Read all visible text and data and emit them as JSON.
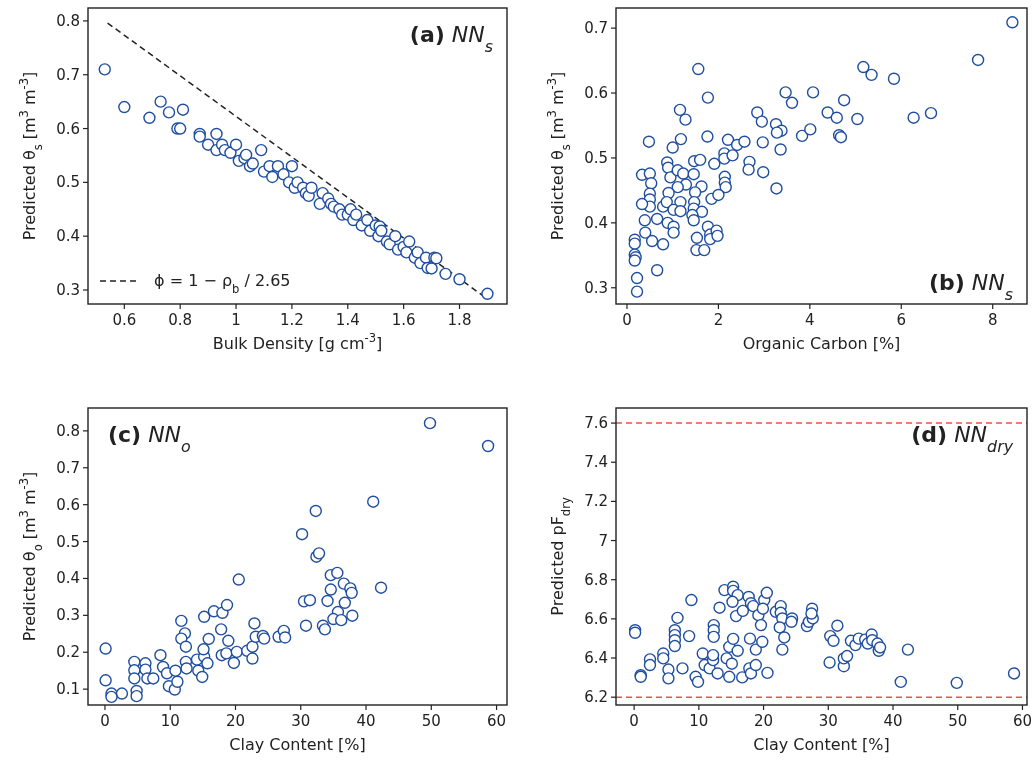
{
  "chart_data": [
    {
      "type": "scatter",
      "xlabel": "Bulk Density [g cm$^{-3}$]",
      "ylabel": "Predicted θ$_{s}$ [m$^{3}$ m$^{-3}$]",
      "annotations": [
        "(a) NN$_{s}$"
      ],
      "xlim": [
        0.47,
        1.97
      ],
      "ylim": [
        0.274,
        0.824
      ],
      "xticks": [
        0.6,
        0.8,
        1.0,
        1.2,
        1.4,
        1.6,
        1.8
      ],
      "yticks": [
        0.3,
        0.4,
        0.5,
        0.6,
        0.7,
        0.8
      ],
      "marker": "circle",
      "legend": "bottom left",
      "series": [
        {
          "type": "line",
          "name": "ϕ = 1 − ρ$_{b}$ / 2.65",
          "color": "#222222",
          "line_style": "dashed",
          "marker": "none",
          "x": [
            0.54,
            1.89
          ],
          "values": [
            0.796,
            0.287
          ]
        },
        {
          "type": "scatter",
          "color": "#1f4e9f",
          "x": [
            0.53,
            0.6,
            0.69,
            0.73,
            0.76,
            0.79,
            0.8,
            0.81,
            0.87,
            0.87,
            0.9,
            0.93,
            0.93,
            0.95,
            0.96,
            0.98,
            1.0,
            1.01,
            1.03,
            1.036,
            1.05,
            1.06,
            1.09,
            1.1,
            1.12,
            1.13,
            1.15,
            1.17,
            1.19,
            1.2,
            1.21,
            1.22,
            1.24,
            1.25,
            1.26,
            1.27,
            1.3,
            1.31,
            1.33,
            1.34,
            1.35,
            1.37,
            1.38,
            1.4,
            1.41,
            1.42,
            1.43,
            1.45,
            1.47,
            1.48,
            1.5,
            1.51,
            1.514,
            1.52,
            1.54,
            1.55,
            1.57,
            1.58,
            1.6,
            1.61,
            1.62,
            1.64,
            1.65,
            1.66,
            1.68,
            1.686,
            1.7,
            1.71,
            1.717,
            1.75,
            1.8,
            1.9
          ],
          "values": [
            0.71,
            0.64,
            0.62,
            0.65,
            0.63,
            0.6,
            0.6,
            0.635,
            0.59,
            0.585,
            0.57,
            0.59,
            0.56,
            0.57,
            0.56,
            0.555,
            0.57,
            0.54,
            0.545,
            0.551,
            0.53,
            0.535,
            0.56,
            0.52,
            0.53,
            0.51,
            0.53,
            0.515,
            0.5,
            0.53,
            0.49,
            0.5,
            0.49,
            0.48,
            0.475,
            0.49,
            0.46,
            0.48,
            0.47,
            0.46,
            0.455,
            0.45,
            0.44,
            0.44,
            0.45,
            0.43,
            0.44,
            0.42,
            0.43,
            0.41,
            0.42,
            0.4,
            0.418,
            0.41,
            0.39,
            0.385,
            0.4,
            0.375,
            0.38,
            0.37,
            0.39,
            0.36,
            0.37,
            0.35,
            0.36,
            0.341,
            0.34,
            0.36,
            0.359,
            0.33,
            0.32,
            0.293
          ]
        }
      ]
    },
    {
      "type": "scatter",
      "xlabel": "Organic Carbon [%]",
      "ylabel": "Predicted θ$_{s}$ [m$^{3}$ m$^{-3}$]",
      "annotations": [
        "(b) NN$_{s}$"
      ],
      "xlim": [
        -0.24,
        8.75
      ],
      "ylim": [
        0.275,
        0.731
      ],
      "xticks": [
        0,
        2,
        4,
        6,
        8
      ],
      "yticks": [
        0.3,
        0.4,
        0.5,
        0.6,
        0.7
      ],
      "marker": "circle",
      "series": [
        {
          "type": "scatter",
          "color": "#1f4e9f",
          "x": [
            8.43,
            7.68,
            5.17,
            5.35,
            5.84,
            1.56,
            1.77,
            3.47,
            4.07,
            3.61,
            4.75,
            4.39,
            4.59,
            5.04,
            6.27,
            6.65,
            1.16,
            1.28,
            2.85,
            2.95,
            3.26,
            3.38,
            3.28,
            3.83,
            4.01,
            4.64,
            4.68,
            0.48,
            1.18,
            1.76,
            2.21,
            1.0,
            2.41,
            2.57,
            2.97,
            3.36,
            2.13,
            2.13,
            2.31,
            1.47,
            1.6,
            1.91,
            2.68,
            2.66,
            2.98,
            3.27,
            0.88,
            0.9,
            0.33,
            0.5,
            0.53,
            0.95,
            1.11,
            1.23,
            1.46,
            1.29,
            1.11,
            1.63,
            1.49,
            2.14,
            2.14,
            2.16,
            0.5,
            0.5,
            0.5,
            0.91,
            0.33,
            0.79,
            0.87,
            1.17,
            1.47,
            1.46,
            1.02,
            1.17,
            1.64,
            1.85,
            2.0,
            1.43,
            1.46,
            0.39,
            0.66,
            0.89,
            1.02,
            1.02,
            0.4,
            0.55,
            0.79,
            1.77,
            1.82,
            1.82,
            1.96,
            1.98,
            1.53,
            1.52,
            1.69,
            0.17,
            0.17,
            0.17,
            0.19,
            0.17,
            0.66,
            0.22,
            0.22
          ],
          "values": [
            0.709,
            0.651,
            0.64,
            0.628,
            0.622,
            0.637,
            0.593,
            0.601,
            0.601,
            0.585,
            0.589,
            0.57,
            0.562,
            0.56,
            0.562,
            0.569,
            0.574,
            0.559,
            0.57,
            0.556,
            0.552,
            0.542,
            0.539,
            0.534,
            0.544,
            0.535,
            0.532,
            0.525,
            0.529,
            0.533,
            0.528,
            0.516,
            0.52,
            0.525,
            0.524,
            0.513,
            0.507,
            0.499,
            0.504,
            0.495,
            0.497,
            0.491,
            0.494,
            0.482,
            0.478,
            0.453,
            0.493,
            0.485,
            0.474,
            0.476,
            0.461,
            0.47,
            0.481,
            0.476,
            0.475,
            0.459,
            0.455,
            0.456,
            0.447,
            0.471,
            0.462,
            0.455,
            0.445,
            0.436,
            0.425,
            0.446,
            0.429,
            0.425,
            0.432,
            0.432,
            0.432,
            0.422,
            0.42,
            0.418,
            0.417,
            0.437,
            0.443,
            0.412,
            0.404,
            0.404,
            0.406,
            0.4,
            0.394,
            0.385,
            0.385,
            0.372,
            0.367,
            0.394,
            0.382,
            0.375,
            0.388,
            0.38,
            0.377,
            0.358,
            0.358,
            0.374,
            0.368,
            0.351,
            0.347,
            0.342,
            0.327,
            0.315,
            0.294
          ]
        }
      ]
    },
    {
      "type": "scatter",
      "xlabel": "Clay Content [%]",
      "ylabel": "Predicted θ$_{o}$ [m$^{3}$ m$^{-3}$]",
      "annotations": [
        "(c) NN$_{o}$"
      ],
      "xlim": [
        -2.6,
        61.6
      ],
      "ylim": [
        0.057,
        0.862
      ],
      "xticks": [
        0,
        10,
        20,
        30,
        40,
        50,
        60
      ],
      "yticks": [
        0.1,
        0.2,
        0.3,
        0.4,
        0.5,
        0.6,
        0.7,
        0.8
      ],
      "marker": "circle",
      "series": [
        {
          "type": "scatter",
          "color": "#1f4e9f",
          "x": [
            0.1,
            0.1,
            1.0,
            2.6,
            1.0,
            4.85,
            4.85,
            4.5,
            4.5,
            4.5,
            6.2,
            6.2,
            6.5,
            7.4,
            8.5,
            8.9,
            9.5,
            9.8,
            10.7,
            11.1,
            10.8,
            11.7,
            12.25,
            11.7,
            12.4,
            12.4,
            12.5,
            14.1,
            14.3,
            14.9,
            15.2,
            15.7,
            15.2,
            16.7,
            18.0,
            18.7,
            15.9,
            15.1,
            17.8,
            18.9,
            20.5,
            17.9,
            18.6,
            20.2,
            19.75,
            21.8,
            22.6,
            22.6,
            22.9,
            23.1,
            24.2,
            24.4,
            26.6,
            27.4,
            27.6,
            30.2,
            32.3,
            32.4,
            32.8,
            30.5,
            31.4,
            30.8,
            33.4,
            33.7,
            34.1,
            34.6,
            35.6,
            34.6,
            36.6,
            37.6,
            37.8,
            36.75,
            35.7,
            35.0,
            36.2,
            37.9,
            41.1,
            42.3,
            49.8,
            58.7
          ],
          "values": [
            0.21,
            0.124,
            0.088,
            0.088,
            0.079,
            0.095,
            0.081,
            0.174,
            0.151,
            0.129,
            0.17,
            0.153,
            0.129,
            0.129,
            0.192,
            0.16,
            0.143,
            0.108,
            0.099,
            0.12,
            0.15,
            0.285,
            0.251,
            0.237,
            0.215,
            0.174,
            0.156,
            0.18,
            0.15,
            0.133,
            0.188,
            0.17,
            0.296,
            0.311,
            0.307,
            0.328,
            0.236,
            0.208,
            0.262,
            0.231,
            0.397,
            0.192,
            0.197,
            0.201,
            0.171,
            0.204,
            0.215,
            0.183,
            0.278,
            0.242,
            0.244,
            0.237,
            0.242,
            0.258,
            0.24,
            0.52,
            0.583,
            0.459,
            0.468,
            0.338,
            0.341,
            0.272,
            0.272,
            0.262,
            0.339,
            0.409,
            0.415,
            0.37,
            0.386,
            0.373,
            0.361,
            0.334,
            0.309,
            0.29,
            0.287,
            0.299,
            0.608,
            0.375,
            0.821,
            0.759
          ]
        }
      ]
    },
    {
      "type": "scatter",
      "xlabel": "Clay Content [%]",
      "ylabel": "Predicted pF$_{dry}$",
      "annotations": [
        "(d) NN$_{dry}$"
      ],
      "xlim": [
        -2.8,
        60.7
      ],
      "ylim": [
        6.16,
        7.677
      ],
      "xticks": [
        0,
        10,
        20,
        30,
        40,
        50,
        60
      ],
      "yticks": [
        6.2,
        6.4,
        6.6,
        6.8,
        7.0,
        7.2,
        7.4,
        7.6
      ],
      "marker": "circle",
      "ref_lines": [
        {
          "axis": "y",
          "value": 7.6,
          "color": "#e8553b",
          "line_style": "dashed"
        },
        {
          "axis": "y",
          "value": 6.2,
          "color": "#e8553b",
          "line_style": "dashed"
        }
      ],
      "series": [
        {
          "type": "scatter",
          "color": "#1f4e9f",
          "x": [
            0.15,
            0.15,
            1.02,
            1.02,
            2.45,
            2.45,
            4.5,
            4.5,
            5.3,
            5.3,
            6.29,
            6.29,
            6.29,
            6.29,
            6.7,
            8.85,
            8.5,
            7.47,
            9.5,
            9.87,
            10.6,
            10.9,
            11.66,
            12.2,
            12.2,
            12.9,
            12.3,
            12.3,
            12.3,
            13.2,
            13.96,
            15.3,
            15.3,
            16.0,
            15.2,
            15.75,
            16.8,
            14.7,
            15.3,
            16.0,
            14.3,
            15.1,
            14.7,
            16.7,
            17.7,
            18.05,
            18.4,
            19.2,
            19.6,
            20.1,
            20.5,
            19.9,
            17.9,
            18.8,
            19.8,
            17.8,
            18.05,
            18.8,
            20.6,
            21.9,
            22.65,
            22.65,
            22.9,
            22.5,
            23.2,
            22.9,
            24.4,
            24.3,
            26.7,
            27.0,
            27.5,
            27.6,
            27.4,
            30.3,
            30.8,
            31.4,
            30.2,
            32.4,
            32.4,
            32.9,
            33.5,
            34.2,
            34.7,
            35.7,
            36.1,
            36.7,
            36.8,
            37.6,
            37.8,
            38.0,
            42.3,
            41.2,
            49.85,
            58.7
          ],
          "values": [
            6.542,
            6.529,
            6.312,
            6.304,
            6.393,
            6.364,
            6.423,
            6.398,
            6.341,
            6.296,
            6.542,
            6.517,
            6.491,
            6.461,
            6.605,
            6.696,
            6.512,
            6.347,
            6.304,
            6.278,
            6.423,
            6.364,
            6.347,
            6.389,
            6.415,
            6.321,
            6.568,
            6.542,
            6.508,
            6.657,
            6.747,
            6.764,
            6.743,
            6.721,
            6.687,
            6.614,
            6.641,
            6.457,
            6.498,
            6.437,
            6.398,
            6.371,
            6.304,
            6.301,
            6.712,
            6.68,
            6.665,
            6.619,
            6.568,
            6.696,
            6.733,
            6.652,
            6.499,
            6.443,
            6.483,
            6.347,
            6.321,
            6.364,
            6.324,
            6.636,
            6.665,
            6.631,
            6.602,
            6.556,
            6.505,
            6.443,
            6.602,
            6.585,
            6.563,
            6.585,
            6.652,
            6.602,
            6.627,
            6.512,
            6.488,
            6.565,
            6.377,
            6.358,
            6.398,
            6.41,
            6.488,
            6.466,
            6.499,
            6.494,
            6.474,
            6.52,
            6.491,
            6.474,
            6.437,
            6.454,
            6.443,
            6.278,
            6.273,
            6.321
          ]
        }
      ]
    }
  ]
}
